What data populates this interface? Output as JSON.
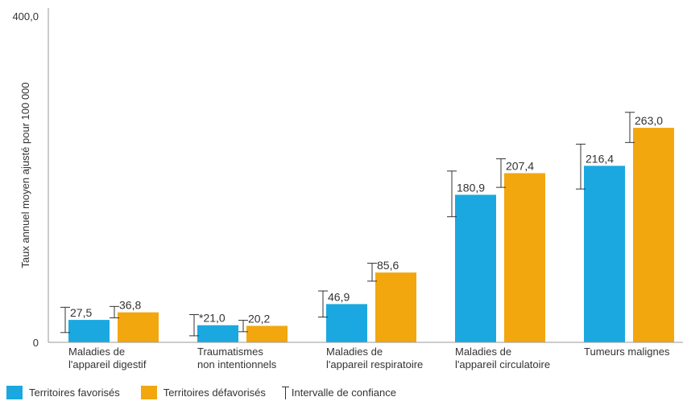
{
  "chart_data": {
    "type": "bar",
    "title": "",
    "ylabel": "Taux annuel moyen ajusté pour 100 000",
    "ylim": [
      0,
      400
    ],
    "y_ticks": [
      "400,0",
      "0"
    ],
    "grid": false,
    "legend_position": "bottom-left",
    "categories": [
      [
        "Maladies de",
        "l'appareil digestif"
      ],
      [
        "Traumatismes",
        "non intentionnels"
      ],
      [
        "Maladies de",
        "l'appareil respiratoire"
      ],
      [
        "Maladies de",
        "l'appareil circulatoire"
      ],
      [
        "Tumeurs malignes"
      ]
    ],
    "series": [
      {
        "name": "Territoires favorisés",
        "color": "#1ba8e0",
        "values": [
          27.5,
          21.0,
          46.9,
          180.9,
          216.4
        ],
        "labels": [
          "27,5",
          "*21,0",
          "46,9",
          "180,9",
          "216,4"
        ],
        "ci": [
          [
            12,
            43
          ],
          [
            8,
            34
          ],
          [
            31,
            63
          ],
          [
            154,
            210
          ],
          [
            188,
            243
          ]
        ]
      },
      {
        "name": "Territoires défavorisés",
        "color": "#f2a70f",
        "values": [
          36.8,
          20.2,
          85.6,
          207.4,
          263.0
        ],
        "labels": [
          "36,8",
          "20,2",
          "85,6",
          "207,4",
          "263,0"
        ],
        "ci": [
          [
            30,
            44
          ],
          [
            13,
            27
          ],
          [
            75,
            97
          ],
          [
            190,
            225
          ],
          [
            245,
            282
          ]
        ]
      }
    ],
    "ci_legend": "Intervalle de confiance"
  }
}
